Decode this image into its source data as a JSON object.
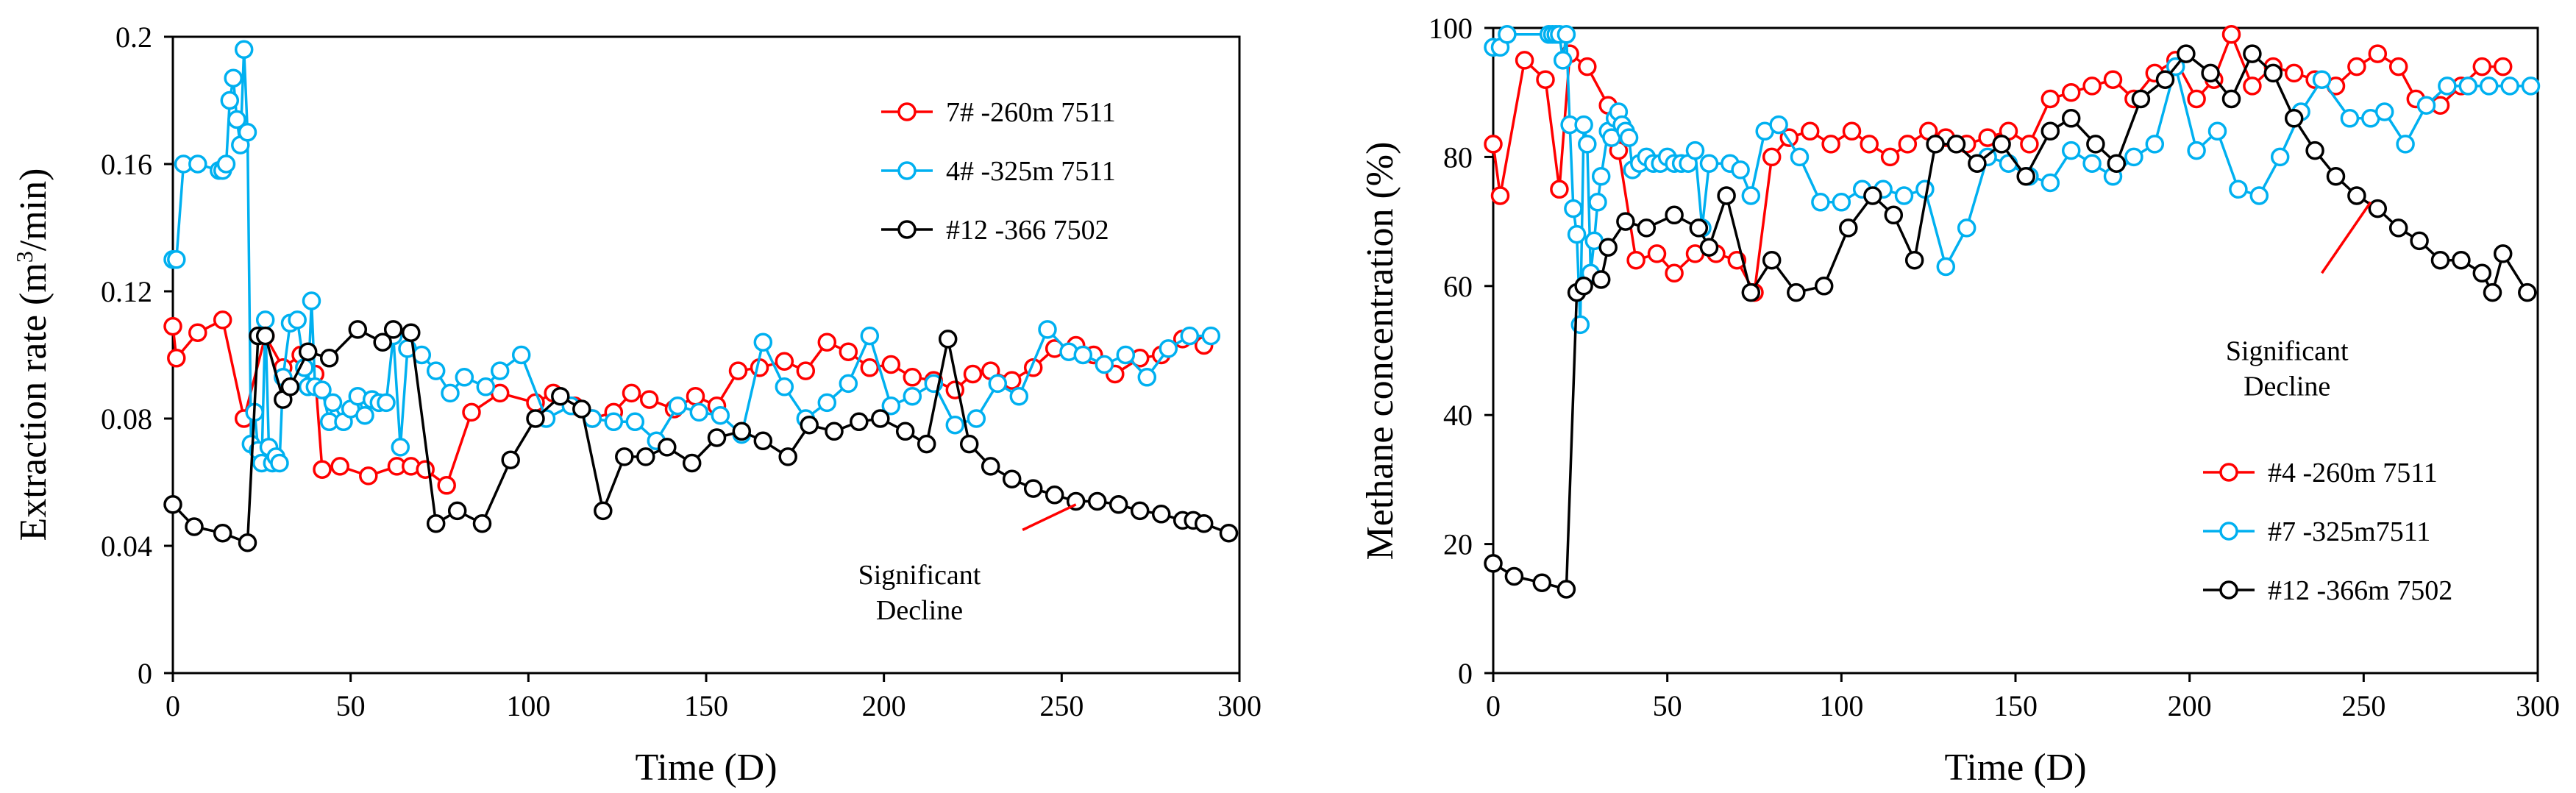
{
  "chart_data": [
    {
      "type": "line",
      "xlabel": "Time (D)",
      "ylabel": "Extraction rate (m³/min)",
      "xlim": [
        0,
        300
      ],
      "ylim": [
        0,
        0.2
      ],
      "xticks": [
        0,
        50,
        100,
        150,
        200,
        250,
        300
      ],
      "yticks": [
        0,
        0.04,
        0.08,
        0.12,
        0.16,
        0.2
      ],
      "xtick_labels": [
        "0",
        "50",
        "100",
        "150",
        "200",
        "250",
        "300"
      ],
      "ytick_labels": [
        "0",
        "0.04",
        "0.08",
        "0.12",
        "0.16",
        "0.2"
      ],
      "grid": false,
      "legend_position": "top-right",
      "annotation": {
        "lines": [
          "Significant",
          "Decline"
        ],
        "x": 210,
        "y": 0.028,
        "arrow_from": [
          239,
          0.045
        ],
        "arrow_to": [
          254,
          0.053
        ]
      },
      "series": [
        {
          "name": "7# -260m 7511",
          "color": "#ff0000",
          "x": [
            0,
            1,
            7,
            14,
            20,
            26,
            31,
            36,
            40,
            42,
            47,
            55,
            63,
            67,
            71,
            77,
            84,
            92,
            102,
            107,
            113,
            118,
            124,
            129,
            134,
            141,
            147,
            153,
            159,
            165,
            172,
            178,
            184,
            190,
            196,
            202,
            208,
            214,
            220,
            225,
            230,
            236,
            242,
            248,
            254,
            259,
            265,
            272,
            278,
            284,
            290
          ],
          "y": [
            0.109,
            0.099,
            0.107,
            0.111,
            0.08,
            0.106,
            0.096,
            0.1,
            0.094,
            0.064,
            0.065,
            0.062,
            0.065,
            0.065,
            0.064,
            0.059,
            0.082,
            0.088,
            0.085,
            0.088,
            0.084,
            0.08,
            0.082,
            0.088,
            0.086,
            0.083,
            0.087,
            0.084,
            0.095,
            0.096,
            0.098,
            0.095,
            0.104,
            0.101,
            0.096,
            0.097,
            0.093,
            0.092,
            0.089,
            0.094,
            0.095,
            0.092,
            0.096,
            0.102,
            0.103,
            0.1,
            0.094,
            0.099,
            0.1,
            0.105,
            0.103
          ]
        },
        {
          "name": "4# -325m 7511",
          "color": "#00b0f0",
          "x": [
            0,
            1,
            3,
            7,
            13,
            14,
            15,
            16,
            17,
            18,
            19,
            20,
            21,
            22,
            23,
            24,
            25,
            26,
            27,
            28,
            29,
            30,
            31,
            33,
            35,
            37,
            38,
            39,
            40,
            42,
            44,
            45,
            48,
            50,
            52,
            54,
            56,
            58,
            60,
            62,
            64,
            66,
            70,
            74,
            78,
            82,
            88,
            92,
            98,
            105,
            112,
            118,
            124,
            130,
            136,
            142,
            148,
            154,
            160,
            166,
            172,
            178,
            184,
            190,
            196,
            202,
            208,
            214,
            220,
            226,
            232,
            238,
            246,
            252,
            256,
            262,
            268,
            274,
            280,
            286,
            292
          ],
          "y": [
            0.13,
            0.13,
            0.16,
            0.16,
            0.158,
            0.158,
            0.16,
            0.18,
            0.187,
            0.174,
            0.166,
            0.196,
            0.17,
            0.072,
            0.082,
            0.07,
            0.066,
            0.111,
            0.071,
            0.066,
            0.068,
            0.066,
            0.093,
            0.11,
            0.111,
            0.096,
            0.09,
            0.117,
            0.09,
            0.089,
            0.079,
            0.085,
            0.079,
            0.083,
            0.087,
            0.081,
            0.086,
            0.085,
            0.085,
            0.106,
            0.071,
            0.102,
            0.1,
            0.095,
            0.088,
            0.093,
            0.09,
            0.095,
            0.1,
            0.08,
            0.084,
            0.08,
            0.079,
            0.079,
            0.073,
            0.084,
            0.082,
            0.081,
            0.075,
            0.104,
            0.09,
            0.08,
            0.085,
            0.091,
            0.106,
            0.084,
            0.087,
            0.091,
            0.078,
            0.08,
            0.091,
            0.087,
            0.108,
            0.101,
            0.1,
            0.097,
            0.1,
            0.093,
            0.102,
            0.106,
            0.106
          ]
        },
        {
          "name": "#12 -366 7502",
          "color": "#000000",
          "x": [
            0,
            6,
            14,
            21,
            24,
            26,
            31,
            33,
            38,
            44,
            52,
            59,
            62,
            67,
            74,
            80,
            87,
            95,
            102,
            109,
            115,
            121,
            127,
            133,
            139,
            146,
            153,
            160,
            166,
            173,
            179,
            186,
            193,
            199,
            206,
            212,
            218,
            224,
            230,
            236,
            242,
            248,
            254,
            260,
            266,
            272,
            278,
            284,
            287,
            290,
            297
          ],
          "y": [
            0.053,
            0.046,
            0.044,
            0.041,
            0.106,
            0.106,
            0.086,
            0.09,
            0.101,
            0.099,
            0.108,
            0.104,
            0.108,
            0.107,
            0.047,
            0.051,
            0.047,
            0.067,
            0.08,
            0.087,
            0.083,
            0.051,
            0.068,
            0.068,
            0.071,
            0.066,
            0.074,
            0.076,
            0.073,
            0.068,
            0.078,
            0.076,
            0.079,
            0.08,
            0.076,
            0.072,
            0.105,
            0.072,
            0.065,
            0.061,
            0.058,
            0.056,
            0.054,
            0.054,
            0.053,
            0.051,
            0.05,
            0.048,
            0.048,
            0.047,
            0.044
          ]
        }
      ]
    },
    {
      "type": "line",
      "xlabel": "Time (D)",
      "ylabel": "Methane concentration  (%)",
      "xlim": [
        0,
        300
      ],
      "ylim": [
        0,
        100
      ],
      "xticks": [
        0,
        50,
        100,
        150,
        200,
        250,
        300
      ],
      "yticks": [
        0,
        20,
        40,
        60,
        80,
        100
      ],
      "xtick_labels": [
        "0",
        "50",
        "100",
        "150",
        "200",
        "250",
        "300"
      ],
      "ytick_labels": [
        "0",
        "20",
        "40",
        "60",
        "80",
        "100"
      ],
      "grid": false,
      "legend_position": "bottom-right",
      "annotation": {
        "lines": [
          "Significant",
          "Decline"
        ],
        "x": 228,
        "y": 48.5,
        "arrow_from": [
          238,
          62
        ],
        "arrow_to": [
          252,
          73
        ]
      },
      "series": [
        {
          "name": "#4 -260m 7511",
          "color": "#ff0000",
          "x": [
            0,
            2,
            9,
            15,
            19,
            22,
            27,
            33,
            36,
            41,
            47,
            52,
            58,
            64,
            70,
            75,
            80,
            85,
            91,
            97,
            103,
            108,
            114,
            119,
            125,
            130,
            136,
            142,
            148,
            154,
            160,
            166,
            172,
            178,
            184,
            190,
            196,
            202,
            207,
            212,
            218,
            224,
            230,
            236,
            242,
            248,
            254,
            260,
            265,
            272,
            278,
            284,
            290
          ],
          "y": [
            82,
            74,
            95,
            92,
            75,
            96,
            94,
            88,
            81,
            64,
            65,
            62,
            65,
            65,
            64,
            59,
            80,
            83,
            84,
            82,
            84,
            82,
            80,
            82,
            84,
            83,
            82,
            83,
            84,
            82,
            89,
            90,
            91,
            92,
            89,
            93,
            95,
            89,
            92,
            99,
            91,
            94,
            93,
            92,
            91,
            94,
            96,
            94,
            89,
            88,
            91,
            94,
            94
          ]
        },
        {
          "name": "#7 -325m7511",
          "color": "#00b0f0",
          "x": [
            0,
            2,
            4,
            16,
            17,
            18,
            19,
            20,
            21,
            22,
            23,
            24,
            25,
            26,
            27,
            28,
            29,
            30,
            31,
            33,
            34,
            35,
            36,
            37,
            38,
            39,
            40,
            42,
            44,
            46,
            48,
            50,
            52,
            54,
            56,
            58,
            60,
            62,
            68,
            71,
            74,
            78,
            82,
            88,
            94,
            100,
            106,
            112,
            118,
            124,
            130,
            136,
            142,
            148,
            154,
            160,
            166,
            172,
            178,
            184,
            190,
            196,
            202,
            208,
            214,
            220,
            226,
            232,
            238,
            246,
            252,
            256,
            262,
            268,
            274,
            280,
            286,
            292,
            298
          ],
          "y": [
            97,
            97,
            99,
            99,
            99,
            99,
            99,
            95,
            99,
            85,
            72,
            68,
            54,
            85,
            82,
            62,
            67,
            73,
            77,
            84,
            83,
            86,
            87,
            85,
            84,
            83,
            78,
            79,
            80,
            79,
            79,
            80,
            79,
            79,
            79,
            81,
            69,
            79,
            79,
            78,
            74,
            84,
            85,
            80,
            73,
            73,
            75,
            75,
            74,
            75,
            63,
            69,
            80,
            79,
            77,
            76,
            81,
            79,
            77,
            80,
            82,
            94,
            81,
            84,
            75,
            74,
            80,
            87,
            92,
            86,
            86,
            87,
            82,
            88,
            91,
            91,
            91,
            91,
            91
          ]
        },
        {
          "name": "#12 -366m 7502",
          "color": "#000000",
          "x": [
            0,
            6,
            14,
            21,
            24,
            26,
            31,
            33,
            38,
            44,
            52,
            59,
            62,
            67,
            74,
            80,
            87,
            95,
            102,
            109,
            115,
            121,
            127,
            133,
            139,
            146,
            153,
            160,
            166,
            173,
            179,
            186,
            193,
            199,
            206,
            212,
            218,
            224,
            230,
            236,
            242,
            248,
            254,
            260,
            266,
            272,
            278,
            284,
            287,
            290,
            297
          ],
          "y": [
            17,
            15,
            14,
            13,
            59,
            60,
            61,
            66,
            70,
            69,
            71,
            69,
            66,
            74,
            59,
            64,
            59,
            60,
            69,
            74,
            71,
            64,
            82,
            82,
            79,
            82,
            77,
            84,
            86,
            82,
            79,
            89,
            92,
            96,
            93,
            89,
            96,
            93,
            86,
            81,
            77,
            74,
            72,
            69,
            67,
            64,
            64,
            62,
            59,
            65,
            59
          ]
        }
      ]
    }
  ]
}
